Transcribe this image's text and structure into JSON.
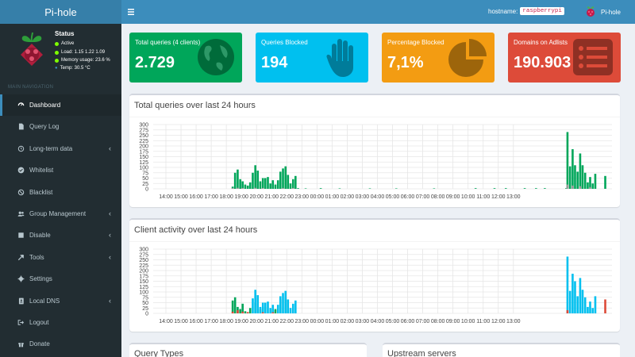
{
  "app": {
    "title": "Pi-hole"
  },
  "topbar": {
    "menu_icon": "hamburger-icon",
    "hostname_label": "hostname:",
    "hostname_value": "raspberrypi",
    "brand": "Pi-hole"
  },
  "status": {
    "title": "Status",
    "active": "Active",
    "load": "Load:  1.15  1.22  1.09",
    "memory": "Memory usage:  23.6 %",
    "temp": "Temp: 30.5 °C"
  },
  "nav": {
    "header": "MAIN NAVIGATION",
    "items": [
      {
        "label": "Dashboard",
        "icon": "dashboard-icon",
        "active": true
      },
      {
        "label": "Query Log",
        "icon": "file-icon"
      },
      {
        "label": "Long-term data",
        "icon": "history-icon",
        "chevron": "‹"
      },
      {
        "label": "Whitelist",
        "icon": "check-circle-icon"
      },
      {
        "label": "Blacklist",
        "icon": "ban-icon"
      },
      {
        "label": "Group Management",
        "icon": "users-icon",
        "chevron": "‹"
      },
      {
        "label": "Disable",
        "icon": "stop-icon",
        "chevron": "‹"
      },
      {
        "label": "Tools",
        "icon": "tools-icon",
        "chevron": "‹"
      },
      {
        "label": "Settings",
        "icon": "gear-icon"
      },
      {
        "label": "Local DNS",
        "icon": "address-book-icon",
        "chevron": "‹"
      },
      {
        "label": "Logout",
        "icon": "logout-icon"
      },
      {
        "label": "Donate",
        "icon": "donate-icon"
      }
    ]
  },
  "stats": [
    {
      "label": "Total queries (4 clients)",
      "value": "2.729",
      "color": "#00a65a",
      "icon": "globe-icon"
    },
    {
      "label": "Queries Blocked",
      "value": "194",
      "color": "#00c0ef",
      "icon": "hand-icon"
    },
    {
      "label": "Percentage Blocked",
      "value": "7,1%",
      "color": "#f39c12",
      "icon": "pie-chart-icon"
    },
    {
      "label": "Domains on Adlists",
      "value": "190.903",
      "color": "#dd4b39",
      "icon": "list-icon"
    }
  ],
  "panels": {
    "queries_title": "Total queries over last 24 hours",
    "clients_title": "Client activity over last 24 hours",
    "query_types_title": "Query Types",
    "upstream_title": "Upstream servers"
  },
  "chart_data": [
    {
      "type": "bar",
      "title": "Total queries over last 24 hours",
      "ylim": [
        0,
        300
      ],
      "yticks": [
        "0",
        "25",
        "50",
        "75",
        "100",
        "125",
        "150",
        "175",
        "200",
        "225",
        "250",
        "275",
        "300"
      ],
      "xticks": [
        "14:00",
        "15:00",
        "16:00",
        "17:00",
        "18:00",
        "19:00",
        "20:00",
        "21:00",
        "22:00",
        "23:00",
        "00:00",
        "01:00",
        "02:00",
        "03:00",
        "04:00",
        "05:00",
        "06:00",
        "07:00",
        "08:00",
        "09:00",
        "10:00",
        "11:00",
        "12:00",
        "13:00"
      ],
      "grid": true,
      "series": [
        {
          "color": "#00a65a",
          "points": [
            [
              18.42,
              10
            ],
            [
              18.58,
              75
            ],
            [
              18.75,
              90
            ],
            [
              18.92,
              45
            ],
            [
              19.08,
              35
            ],
            [
              19.25,
              20
            ],
            [
              19.42,
              15
            ],
            [
              19.58,
              30
            ],
            [
              19.75,
              75
            ],
            [
              19.92,
              110
            ],
            [
              20.08,
              85
            ],
            [
              20.25,
              35
            ],
            [
              20.42,
              50
            ],
            [
              20.58,
              50
            ],
            [
              20.75,
              55
            ],
            [
              20.92,
              25
            ],
            [
              21.08,
              40
            ],
            [
              21.25,
              20
            ],
            [
              21.42,
              40
            ],
            [
              21.58,
              80
            ],
            [
              21.75,
              95
            ],
            [
              21.92,
              105
            ],
            [
              22.08,
              65
            ],
            [
              22.25,
              25
            ],
            [
              22.42,
              45
            ],
            [
              22.58,
              60
            ],
            [
              22.75,
              3
            ],
            [
              23.25,
              2
            ],
            [
              24.25,
              3
            ],
            [
              25.5,
              2
            ],
            [
              27.5,
              2
            ],
            [
              29.25,
              2
            ],
            [
              31.75,
              2
            ],
            [
              34.5,
              3
            ],
            [
              35.75,
              3
            ],
            [
              36.5,
              3
            ],
            [
              37.75,
              3
            ],
            [
              38.5,
              3
            ],
            [
              39.08,
              3
            ],
            [
              40.5,
              3
            ],
            [
              40.58,
              265
            ],
            [
              40.75,
              105
            ],
            [
              40.92,
              185
            ],
            [
              41.08,
              110
            ],
            [
              41.25,
              80
            ],
            [
              41.42,
              165
            ],
            [
              41.58,
              110
            ],
            [
              41.75,
              75
            ],
            [
              41.92,
              30
            ],
            [
              42.08,
              55
            ],
            [
              42.25,
              25
            ],
            [
              42.42,
              70
            ],
            [
              43.08,
              60
            ]
          ]
        },
        {
          "color": "#999999",
          "points": [
            [
              18.42,
              4
            ],
            [
              18.75,
              5
            ],
            [
              19.08,
              4
            ],
            [
              19.92,
              5
            ],
            [
              20.42,
              4
            ],
            [
              21.75,
              4
            ],
            [
              22.42,
              4
            ],
            [
              40.58,
              20
            ],
            [
              40.92,
              15
            ],
            [
              41.42,
              12
            ],
            [
              42.08,
              8
            ]
          ]
        }
      ]
    },
    {
      "type": "bar",
      "title": "Client activity over last 24 hours",
      "ylim": [
        0,
        300
      ],
      "yticks": [
        "0",
        "25",
        "50",
        "75",
        "100",
        "125",
        "150",
        "175",
        "200",
        "225",
        "250",
        "275",
        "300"
      ],
      "xticks": [
        "14:00",
        "15:00",
        "16:00",
        "17:00",
        "18:00",
        "19:00",
        "20:00",
        "21:00",
        "22:00",
        "23:00",
        "00:00",
        "01:00",
        "02:00",
        "03:00",
        "04:00",
        "05:00",
        "06:00",
        "07:00",
        "08:00",
        "09:00",
        "10:00",
        "11:00",
        "12:00",
        "13:00"
      ],
      "grid": true,
      "series": [
        {
          "color": "#00a65a",
          "points": [
            [
              18.42,
              60
            ],
            [
              18.58,
              75
            ],
            [
              18.75,
              30
            ],
            [
              18.92,
              20
            ],
            [
              19.08,
              45
            ],
            [
              19.25,
              10
            ],
            [
              19.42,
              5
            ],
            [
              19.58,
              25
            ],
            [
              19.92,
              50
            ],
            [
              20.25,
              20
            ],
            [
              20.58,
              30
            ],
            [
              21.08,
              15
            ],
            [
              21.25,
              20
            ],
            [
              21.58,
              65
            ],
            [
              21.92,
              75
            ]
          ]
        },
        {
          "color": "#00c0ef",
          "points": [
            [
              19.75,
              70
            ],
            [
              19.92,
              110
            ],
            [
              20.08,
              85
            ],
            [
              20.25,
              30
            ],
            [
              20.42,
              50
            ],
            [
              20.58,
              50
            ],
            [
              20.75,
              55
            ],
            [
              20.92,
              25
            ],
            [
              21.08,
              40
            ],
            [
              21.42,
              40
            ],
            [
              21.58,
              80
            ],
            [
              21.75,
              95
            ],
            [
              21.92,
              105
            ],
            [
              22.08,
              65
            ],
            [
              22.25,
              25
            ],
            [
              22.42,
              45
            ],
            [
              22.58,
              60
            ],
            [
              40.58,
              265
            ],
            [
              40.75,
              105
            ],
            [
              40.92,
              185
            ],
            [
              41.08,
              150
            ],
            [
              41.25,
              80
            ],
            [
              41.42,
              165
            ],
            [
              41.58,
              110
            ],
            [
              41.75,
              75
            ],
            [
              41.92,
              30
            ],
            [
              42.08,
              55
            ],
            [
              42.25,
              25
            ],
            [
              42.42,
              80
            ]
          ]
        },
        {
          "color": "#dd4b39",
          "points": [
            [
              18.42,
              8
            ],
            [
              18.75,
              15
            ],
            [
              19.08,
              8
            ],
            [
              19.42,
              6
            ],
            [
              20.42,
              5
            ],
            [
              21.08,
              5
            ],
            [
              40.58,
              15
            ],
            [
              43.08,
              65
            ]
          ]
        }
      ]
    }
  ]
}
